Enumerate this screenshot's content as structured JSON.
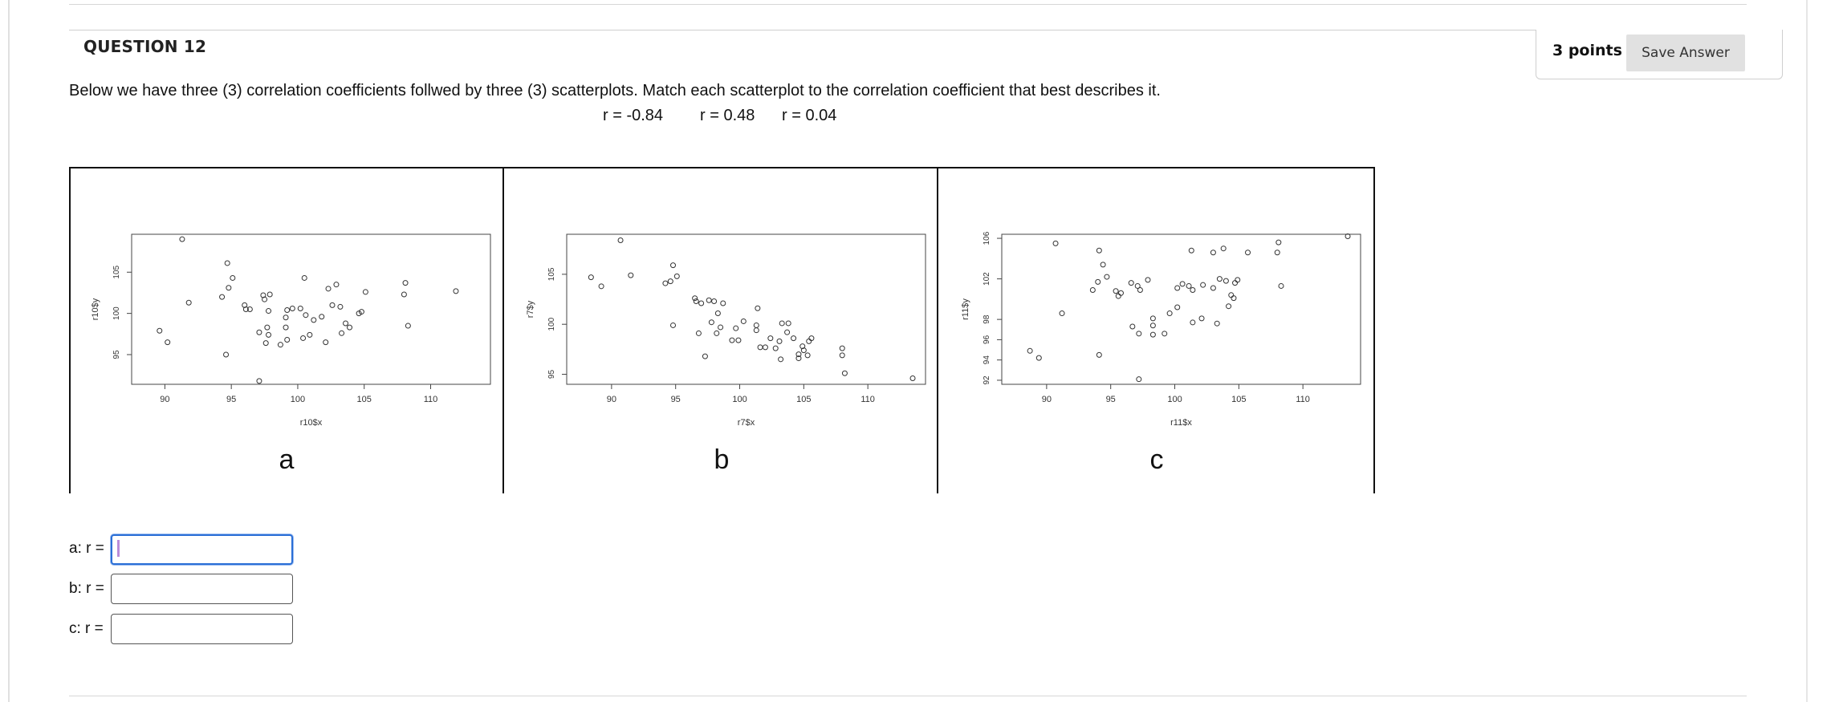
{
  "question": {
    "title": "QUESTION 12",
    "points": "3 points",
    "save_label": "Save Answer",
    "prompt": "Below we have three (3) correlation coefficients follwed by three (3) scatterplots.  Match each scatterplot to the correlation coefficient that best describes it.",
    "coefficients": [
      "r = -0.84",
      "r = 0.48",
      "r = 0.04"
    ]
  },
  "chart_data": [
    {
      "type": "scatter",
      "panel_label": "a",
      "xlabel": "r10$x",
      "ylabel": "r10$y",
      "xticks": [
        "90",
        "95",
        "100",
        "105",
        "110"
      ],
      "yticks": [
        "95",
        "100",
        "105"
      ],
      "xlim": [
        87.5,
        114.5
      ],
      "ylim": [
        91.4,
        109.6
      ],
      "points": [
        [
          91.3,
          109.0
        ],
        [
          91.8,
          101.3
        ],
        [
          89.6,
          97.9
        ],
        [
          90.2,
          96.5
        ],
        [
          94.3,
          102.0
        ],
        [
          94.7,
          106.1
        ],
        [
          94.8,
          103.1
        ],
        [
          94.6,
          95.0
        ],
        [
          95.1,
          104.3
        ],
        [
          96.1,
          100.5
        ],
        [
          96.0,
          101.0
        ],
        [
          96.4,
          100.5
        ],
        [
          97.1,
          97.7
        ],
        [
          97.4,
          102.2
        ],
        [
          97.5,
          101.7
        ],
        [
          97.9,
          102.3
        ],
        [
          97.8,
          100.3
        ],
        [
          97.7,
          98.3
        ],
        [
          97.8,
          97.4
        ],
        [
          97.6,
          96.4
        ],
        [
          98.7,
          96.2
        ],
        [
          99.2,
          96.8
        ],
        [
          99.1,
          98.3
        ],
        [
          99.1,
          99.5
        ],
        [
          99.2,
          100.4
        ],
        [
          99.6,
          100.6
        ],
        [
          100.2,
          100.6
        ],
        [
          100.5,
          104.3
        ],
        [
          100.6,
          99.8
        ],
        [
          100.4,
          97.0
        ],
        [
          100.9,
          97.4
        ],
        [
          101.2,
          99.2
        ],
        [
          101.8,
          99.6
        ],
        [
          102.1,
          96.5
        ],
        [
          102.3,
          103.0
        ],
        [
          102.6,
          101.0
        ],
        [
          102.9,
          103.5
        ],
        [
          103.3,
          97.6
        ],
        [
          103.2,
          100.8
        ],
        [
          103.6,
          98.8
        ],
        [
          103.9,
          98.3
        ],
        [
          104.6,
          100.0
        ],
        [
          104.8,
          100.2
        ],
        [
          105.1,
          102.6
        ],
        [
          108.0,
          102.3
        ],
        [
          108.1,
          103.7
        ],
        [
          108.3,
          98.5
        ],
        [
          111.9,
          102.7
        ],
        [
          97.1,
          91.8
        ]
      ]
    },
    {
      "type": "scatter",
      "panel_label": "b",
      "xlabel": "r7$x",
      "ylabel": "r7$y",
      "xticks": [
        "90",
        "95",
        "100",
        "105",
        "110"
      ],
      "yticks": [
        "95",
        "100",
        "105"
      ],
      "xlim": [
        86.5,
        114.5
      ],
      "ylim": [
        94.0,
        109.0
      ],
      "points": [
        [
          88.4,
          104.7
        ],
        [
          89.2,
          103.8
        ],
        [
          90.7,
          108.4
        ],
        [
          91.5,
          104.9
        ],
        [
          94.2,
          104.1
        ],
        [
          94.6,
          104.3
        ],
        [
          94.8,
          105.9
        ],
        [
          95.1,
          104.8
        ],
        [
          94.8,
          99.9
        ],
        [
          96.5,
          102.6
        ],
        [
          96.6,
          102.3
        ],
        [
          97.0,
          102.1
        ],
        [
          97.3,
          96.8
        ],
        [
          97.6,
          102.4
        ],
        [
          98.0,
          102.3
        ],
        [
          97.8,
          100.2
        ],
        [
          98.2,
          99.1
        ],
        [
          98.3,
          101.1
        ],
        [
          98.7,
          102.1
        ],
        [
          98.5,
          99.7
        ],
        [
          99.4,
          98.4
        ],
        [
          99.7,
          99.6
        ],
        [
          99.9,
          98.4
        ],
        [
          100.3,
          100.3
        ],
        [
          101.4,
          101.6
        ],
        [
          101.3,
          99.9
        ],
        [
          101.3,
          99.4
        ],
        [
          101.6,
          97.7
        ],
        [
          102.0,
          97.7
        ],
        [
          102.4,
          98.6
        ],
        [
          102.8,
          97.6
        ],
        [
          103.1,
          98.3
        ],
        [
          103.3,
          100.1
        ],
        [
          103.2,
          96.5
        ],
        [
          103.8,
          100.1
        ],
        [
          103.7,
          99.2
        ],
        [
          104.2,
          98.6
        ],
        [
          104.6,
          97.0
        ],
        [
          104.6,
          96.6
        ],
        [
          105.0,
          97.4
        ],
        [
          105.3,
          96.9
        ],
        [
          105.4,
          98.3
        ],
        [
          105.6,
          98.6
        ],
        [
          104.9,
          97.8
        ],
        [
          108.0,
          96.9
        ],
        [
          108.0,
          97.6
        ],
        [
          108.2,
          95.1
        ],
        [
          113.5,
          94.6
        ],
        [
          96.8,
          99.1
        ]
      ]
    },
    {
      "type": "scatter",
      "panel_label": "c",
      "xlabel": "r11$x",
      "ylabel": "r11$y",
      "xticks": [
        "90",
        "95",
        "100",
        "105",
        "110"
      ],
      "yticks": [
        "92",
        "94",
        "96",
        "98",
        "102",
        "106"
      ],
      "xlim": [
        86.5,
        114.5
      ],
      "ylim": [
        91.6,
        106.4
      ],
      "points": [
        [
          88.7,
          94.9
        ],
        [
          89.4,
          94.2
        ],
        [
          90.7,
          105.5
        ],
        [
          91.2,
          98.6
        ],
        [
          93.6,
          100.9
        ],
        [
          94.1,
          104.8
        ],
        [
          94.4,
          103.4
        ],
        [
          94.0,
          101.7
        ],
        [
          94.7,
          102.2
        ],
        [
          94.1,
          94.5
        ],
        [
          95.4,
          100.8
        ],
        [
          95.6,
          100.3
        ],
        [
          95.8,
          100.6
        ],
        [
          96.7,
          97.3
        ],
        [
          97.1,
          101.3
        ],
        [
          96.6,
          101.6
        ],
        [
          97.3,
          100.9
        ],
        [
          97.2,
          96.6
        ],
        [
          97.9,
          101.9
        ],
        [
          98.3,
          98.1
        ],
        [
          98.3,
          97.4
        ],
        [
          98.3,
          96.5
        ],
        [
          99.2,
          96.6
        ],
        [
          99.6,
          98.6
        ],
        [
          100.2,
          99.2
        ],
        [
          100.2,
          101.1
        ],
        [
          100.6,
          101.5
        ],
        [
          101.1,
          101.3
        ],
        [
          101.3,
          104.8
        ],
        [
          101.4,
          100.9
        ],
        [
          101.4,
          97.7
        ],
        [
          102.1,
          98.1
        ],
        [
          102.2,
          101.4
        ],
        [
          103.0,
          101.1
        ],
        [
          103.0,
          104.6
        ],
        [
          103.3,
          97.6
        ],
        [
          103.5,
          102.0
        ],
        [
          103.8,
          105.0
        ],
        [
          104.0,
          101.8
        ],
        [
          104.2,
          99.3
        ],
        [
          104.4,
          100.4
        ],
        [
          104.6,
          100.1
        ],
        [
          104.7,
          101.6
        ],
        [
          104.9,
          101.9
        ],
        [
          105.7,
          104.6
        ],
        [
          108.0,
          104.6
        ],
        [
          108.1,
          105.6
        ],
        [
          108.3,
          101.3
        ],
        [
          113.5,
          106.2
        ],
        [
          97.2,
          92.1
        ]
      ]
    }
  ],
  "answers": [
    {
      "label": "a: r =",
      "value": ""
    },
    {
      "label": "b: r =",
      "value": ""
    },
    {
      "label": "c: r =",
      "value": ""
    }
  ]
}
